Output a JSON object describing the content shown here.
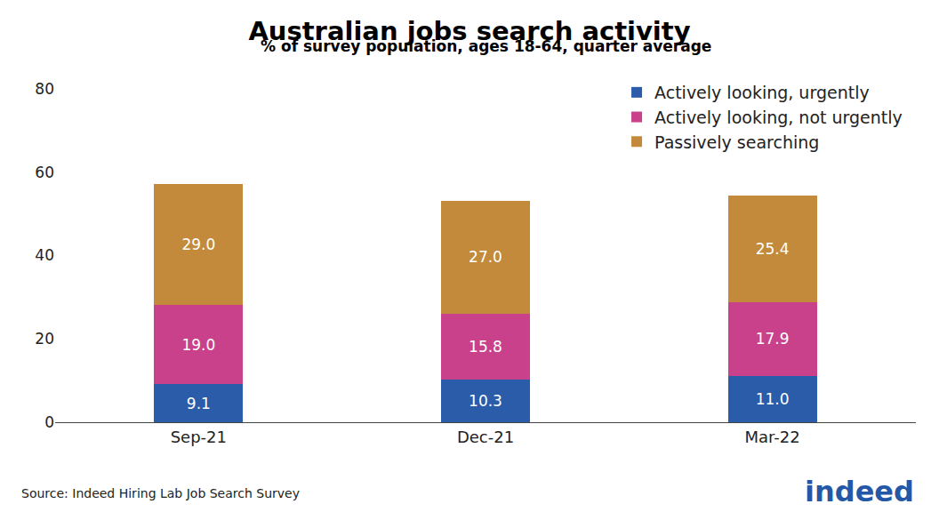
{
  "chart_data": {
    "type": "bar",
    "title": "Australian jobs search activity",
    "subtitle": "% of survey population, ages 18-64, quarter average",
    "categories": [
      "Sep-21",
      "Dec-21",
      "Mar-22"
    ],
    "series": [
      {
        "name": "Actively looking, urgently",
        "color": "#2a5caa",
        "values": [
          9.1,
          10.3,
          11.0
        ],
        "value_labels": [
          "9.1",
          "10.3",
          "11.0"
        ]
      },
      {
        "name": "Actively looking, not urgently",
        "color": "#c9408b",
        "values": [
          19.0,
          15.8,
          17.9
        ],
        "value_labels": [
          "19.0",
          "15.8",
          "17.9"
        ]
      },
      {
        "name": "Passively searching",
        "color": "#c28a3a",
        "values": [
          29.0,
          27.0,
          25.4
        ],
        "value_labels": [
          "29.0",
          "27.0",
          "25.4"
        ]
      }
    ],
    "stacked": true,
    "data_labels": true,
    "ylim": [
      0,
      80
    ],
    "yticks": [
      0,
      20,
      40,
      60,
      80
    ],
    "grid": false,
    "legend": "top-right",
    "annotations": [
      "Source: Indeed Hiring Lab Job Search Survey",
      "indeed"
    ]
  }
}
